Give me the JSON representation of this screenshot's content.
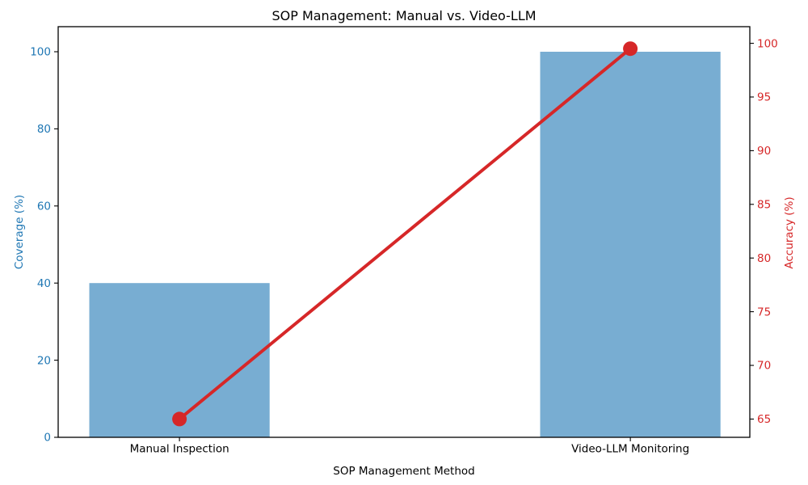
{
  "chart_data": {
    "type": "bar",
    "title": "SOP Management: Manual vs. Video-LLM",
    "categories": [
      "Manual Inspection",
      "Video-LLM Monitoring"
    ],
    "series": [
      {
        "name": "Coverage",
        "plot": "bar",
        "axis": "left",
        "values": [
          40,
          100
        ],
        "color": "#78add2"
      },
      {
        "name": "Accuracy",
        "plot": "line",
        "axis": "right",
        "values": [
          65,
          99.5
        ],
        "color": "#d62728"
      }
    ],
    "xlabel": "SOP Management Method",
    "left_axis": {
      "label": "Coverage (%)",
      "color": "#1f77b4",
      "ticks": [
        0,
        20,
        40,
        60,
        80,
        100
      ],
      "lim": [
        0,
        106.5
      ]
    },
    "right_axis": {
      "label": "Accuracy (%)",
      "color": "#d62728",
      "ticks": [
        65,
        70,
        75,
        80,
        85,
        90,
        95,
        100
      ],
      "lim": [
        63.3,
        101.55
      ]
    },
    "x_tick_color": "#000000",
    "spine_color": "#000000",
    "grid": false,
    "legend": "none"
  }
}
